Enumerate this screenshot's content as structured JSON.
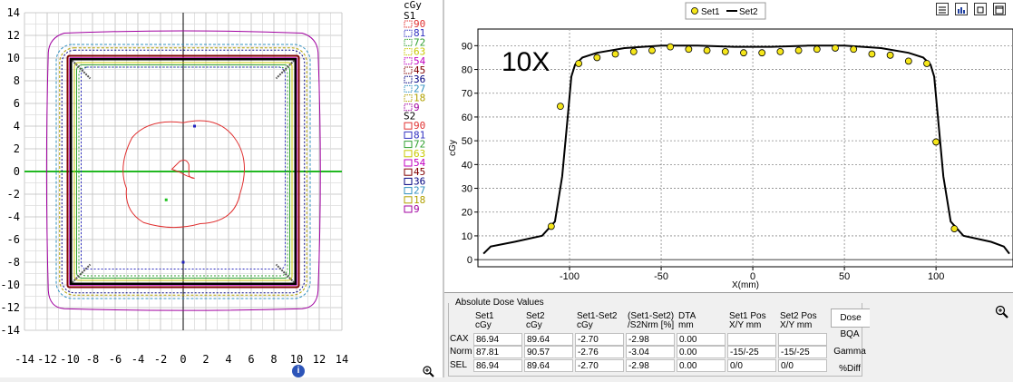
{
  "isodose": {
    "axis_ticks_y": [
      "14",
      "12",
      "10",
      "8",
      "6",
      "4",
      "2",
      "0",
      "-2",
      "-4",
      "-6",
      "-8",
      "-10",
      "-12",
      "-14"
    ],
    "axis_ticks_x": [
      "-14",
      "-12",
      "-10",
      "-8",
      "-6",
      "-4",
      "-2",
      "0",
      "2",
      "4",
      "6",
      "8",
      "10",
      "12",
      "14"
    ],
    "legend_unit": "cGy",
    "set1_label": "S1",
    "set2_label": "S2",
    "set1_levels": [
      {
        "value": "90",
        "color": "#e03030"
      },
      {
        "value": "81",
        "color": "#3030c0"
      },
      {
        "value": "72",
        "color": "#30a030"
      },
      {
        "value": "63",
        "color": "#c8c800"
      },
      {
        "value": "54",
        "color": "#c000c0"
      },
      {
        "value": "45",
        "color": "#800000"
      },
      {
        "value": "36",
        "color": "#000080"
      },
      {
        "value": "27",
        "color": "#3090c0"
      },
      {
        "value": "18",
        "color": "#b0a000"
      },
      {
        "value": "9",
        "color": "#a000a0"
      }
    ],
    "set2_levels": [
      {
        "value": "90",
        "color": "#e03030"
      },
      {
        "value": "81",
        "color": "#3030c0"
      },
      {
        "value": "72",
        "color": "#30a030"
      },
      {
        "value": "63",
        "color": "#c8c800"
      },
      {
        "value": "54",
        "color": "#c000c0"
      },
      {
        "value": "45",
        "color": "#800000"
      },
      {
        "value": "36",
        "color": "#000080"
      },
      {
        "value": "27",
        "color": "#3090c0"
      },
      {
        "value": "18",
        "color": "#b0a000"
      },
      {
        "value": "9",
        "color": "#a000a0"
      }
    ],
    "info_icon": "info-icon",
    "zoom_icon": "zoom-icon"
  },
  "chart_data": {
    "type": "line",
    "annotation": "10X",
    "ylabel": "cGy",
    "xlabel": "X(mm)",
    "xlim": [
      -150,
      142
    ],
    "ylim": [
      -3,
      97
    ],
    "x_ticks": [
      -100,
      -50,
      0,
      50,
      100
    ],
    "y_ticks": [
      0,
      10,
      20,
      30,
      40,
      50,
      60,
      70,
      80,
      90
    ],
    "grid": true,
    "legend_position": "top",
    "series": [
      {
        "name": "Set1",
        "style": "points",
        "color": "#f5e61a",
        "x": [
          -110,
          -105,
          -95,
          -85,
          -75,
          -65,
          -55,
          -45,
          -35,
          -25,
          -15,
          -5,
          5,
          15,
          25,
          35,
          45,
          55,
          65,
          75,
          85,
          95,
          100,
          110
        ],
        "y": [
          14,
          64.5,
          82.5,
          85,
          86.5,
          87.5,
          88,
          89.5,
          88.5,
          88,
          87.5,
          87,
          87,
          87.5,
          88,
          88.5,
          89,
          88.5,
          86.5,
          86,
          83.5,
          82.5,
          49.5,
          13
        ]
      },
      {
        "name": "Set2",
        "style": "line",
        "color": "#000000",
        "x": [
          -147,
          -143,
          -130,
          -115,
          -108,
          -104,
          -101,
          -99,
          -97,
          -93,
          -85,
          -70,
          -50,
          -30,
          -10,
          0,
          10,
          30,
          50,
          70,
          85,
          93,
          97,
          99,
          101,
          104,
          108,
          115,
          130,
          137,
          140
        ],
        "y": [
          2.5,
          5.5,
          7.5,
          10,
          16,
          35,
          60,
          77,
          82,
          85,
          87,
          89,
          90,
          90,
          89.5,
          89.5,
          89.5,
          90,
          90,
          89,
          87,
          85,
          82,
          77,
          60,
          35,
          16,
          10,
          7.5,
          5.5,
          2.5
        ]
      }
    ]
  },
  "profile_toolbar": {
    "icons": [
      "table-icon",
      "chart-bars-icon",
      "frame-icon",
      "window-icon"
    ]
  },
  "dose_table": {
    "title": "Absolute Dose Values",
    "headers": [
      {
        "l1": "Set1",
        "l2": "cGy"
      },
      {
        "l1": "Set2",
        "l2": "cGy"
      },
      {
        "l1": "Set1-Set2",
        "l2": "cGy"
      },
      {
        "l1": "(Set1-Set2)",
        "l2": "/S2Nrm [%]"
      },
      {
        "l1": "DTA",
        "l2": "mm"
      },
      {
        "l1": "Set1 Pos",
        "l2": "X/Y mm"
      },
      {
        "l1": "Set2 Pos",
        "l2": "X/Y mm"
      }
    ],
    "rows": [
      {
        "label": "CAX",
        "cells": [
          "86.94",
          "89.64",
          "-2.70",
          "-2.98",
          "0.00",
          "",
          ""
        ]
      },
      {
        "label": "Norm",
        "cells": [
          "87.81",
          "90.57",
          "-2.76",
          "-3.04",
          "0.00",
          "-15/-25",
          "-15/-25"
        ]
      },
      {
        "label": "SEL",
        "cells": [
          "86.94",
          "89.64",
          "-2.70",
          "-2.98",
          "0.00",
          "0/0",
          "0/0"
        ]
      }
    ],
    "side_tabs": [
      "Dose",
      "BQA",
      "Gamma",
      "%Diff"
    ]
  }
}
